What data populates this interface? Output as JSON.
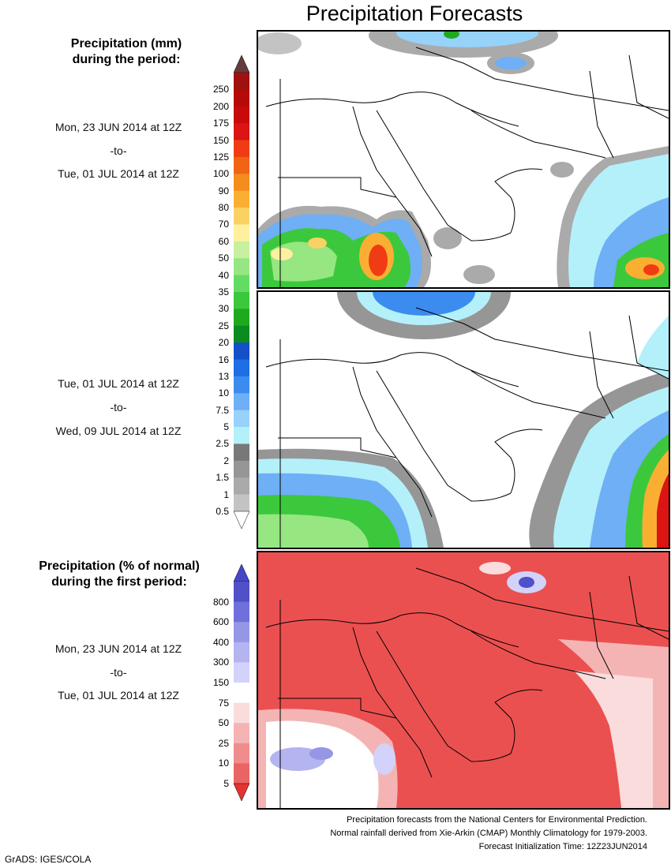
{
  "title": "Precipitation Forecasts",
  "period1": {
    "legend_title_line1": "Precipitation (mm)",
    "legend_title_line2": "during the period:",
    "start": "Mon, 23 JUN 2014 at 12Z",
    "sep": "-to-",
    "end": "Tue, 01 JUL 2014 at 12Z"
  },
  "period2": {
    "start": "Tue, 01 JUL 2014 at 12Z",
    "sep": "-to-",
    "end": "Wed, 09 JUL 2014 at 12Z"
  },
  "percent": {
    "legend_title_line1": "Precipitation (% of normal)",
    "legend_title_line2": "during the first period:",
    "start": "Mon, 23 JUN 2014 at 12Z",
    "sep": "-to-",
    "end": "Tue, 01 JUL 2014 at 12Z"
  },
  "mm_scale": {
    "labels": [
      "250",
      "200",
      "175",
      "150",
      "125",
      "100",
      "90",
      "80",
      "70",
      "60",
      "50",
      "40",
      "35",
      "30",
      "25",
      "20",
      "16",
      "13",
      "10",
      "7.5",
      "5",
      "2.5",
      "2",
      "1.5",
      "1",
      "0.5"
    ],
    "colors": [
      "#a01010",
      "#b40a0a",
      "#c80a0a",
      "#dc1414",
      "#f03c14",
      "#f06414",
      "#f58c1e",
      "#faaf32",
      "#fad264",
      "#fff0a0",
      "#c8f0a0",
      "#96e682",
      "#64dc64",
      "#3cc83c",
      "#1eaa1e",
      "#0a8c1e",
      "#1450c8",
      "#1e6ee6",
      "#3c8cf0",
      "#6eaff5",
      "#96d2fa",
      "#b4f0fa",
      "#787878",
      "#969696",
      "#aaaaaa",
      "#c3c3c3"
    ],
    "top_arrow_color": "#643c3c"
  },
  "pct_scale": {
    "labels": [
      "800",
      "600",
      "400",
      "300",
      "150",
      "75",
      "50",
      "25",
      "10",
      "5"
    ],
    "colors": [
      "#5050c8",
      "#7070dc",
      "#9696e6",
      "#b4b4f0",
      "#d2d2fa",
      "#ffffff",
      "#fadcdc",
      "#f5b4b4",
      "#f08c8c",
      "#eb6464",
      "#e63c3c"
    ],
    "top_arrow_color": "#4646c8",
    "bottom_arrow_color": "#e63232"
  },
  "footer": {
    "line1": "Precipitation forecasts from the National Centers for Environmental Prediction.",
    "line2": "Normal rainfall derived from Xie-Arkin (CMAP) Monthly Climatology for 1979-2003.",
    "line3": "Forecast Initialization Time: 12Z23JUN2014"
  },
  "credit": "GrADS: IGES/COLA"
}
